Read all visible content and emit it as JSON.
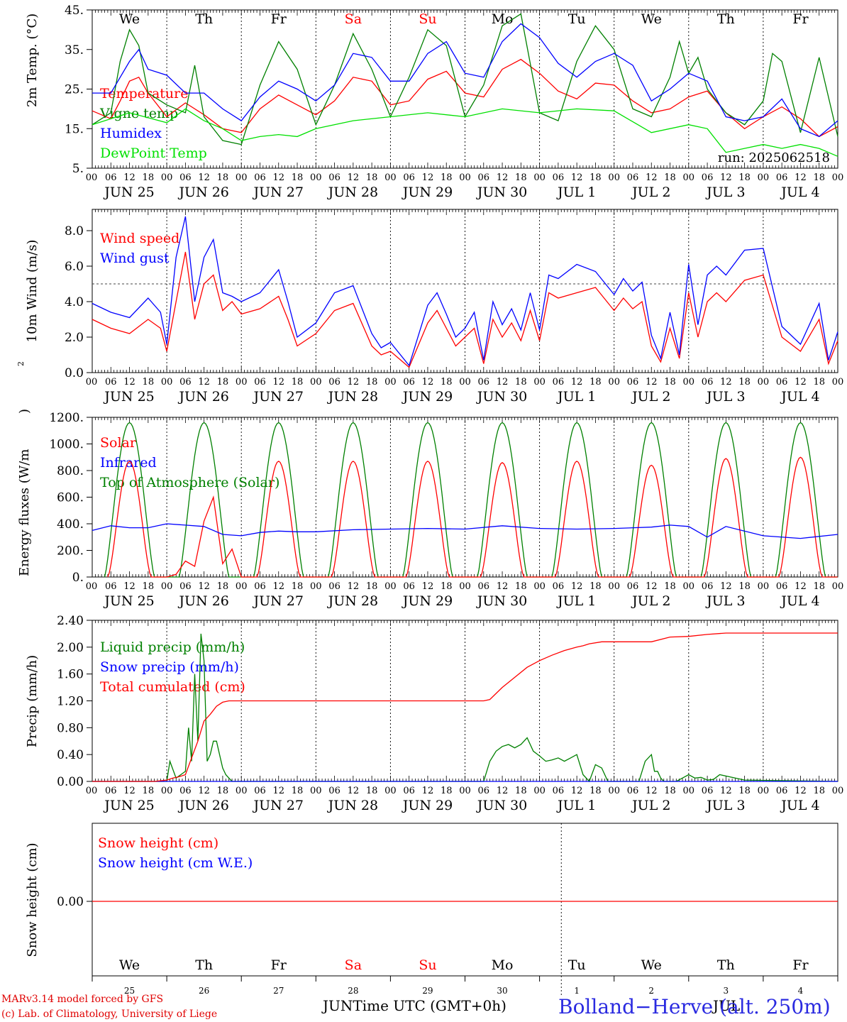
{
  "run_label": "run: 2025062518",
  "days": {
    "weekday": [
      "We",
      "Th",
      "Fr",
      "Sa",
      "Su",
      "Mo",
      "Tu",
      "We",
      "Th",
      "Fr"
    ],
    "weekend_flags": [
      false,
      false,
      false,
      true,
      true,
      false,
      false,
      false,
      false,
      false
    ],
    "dates": [
      "JUN 25",
      "JUN 26",
      "JUN 27",
      "JUN 28",
      "JUN 29",
      "JUN 30",
      "JUL  1",
      "JUL  2",
      "JUL  3",
      "JUL  4"
    ],
    "day_numbers": [
      "25",
      "26",
      "27",
      "28",
      "29",
      "30",
      "1",
      "2",
      "3",
      "4"
    ],
    "hour_ticks": [
      "00",
      "06",
      "12",
      "18"
    ],
    "final_hour": "00"
  },
  "colors": {
    "temperature": "#ff0000",
    "vigne": "#008000",
    "humidex": "#0000ff",
    "dewpoint": "#00e000",
    "weekend": "#ff0000",
    "station": "#2a2ae0"
  },
  "footer": {
    "model": "MARv3.14 model forced by GFS",
    "lab": "(c) Lab. of Climatology, University of Liege",
    "axis_title": "JUNTime UTC (GMT+0h)",
    "month_right": "JUL",
    "station": "Bolland−Herve (alt. 250m)"
  },
  "chart_data": [
    {
      "type": "line",
      "ylabel": "2m Temp. (°C)",
      "ylim": [
        5,
        45
      ],
      "yticks": [
        "45.",
        "35.",
        "25.",
        "15.",
        "5."
      ],
      "x_unit": "hours since 2025-06-25 00 UTC",
      "x_range": [
        0,
        240
      ],
      "series": [
        {
          "name": "Temperature",
          "color": "#ff0000",
          "x": [
            0,
            6,
            9,
            12,
            15,
            18,
            24,
            30,
            36,
            42,
            48,
            54,
            60,
            66,
            72,
            78,
            84,
            90,
            96,
            102,
            108,
            114,
            120,
            126,
            132,
            138,
            144,
            150,
            156,
            162,
            168,
            174,
            180,
            186,
            192,
            198,
            204,
            210,
            216,
            222,
            228,
            234,
            240
          ],
          "y": [
            19.5,
            17.5,
            22,
            27,
            28,
            24,
            18,
            21.5,
            18.5,
            15,
            14,
            20,
            23.5,
            21,
            18.5,
            22,
            28,
            27,
            21,
            22,
            27.5,
            29.5,
            24,
            23,
            30,
            32.5,
            29,
            24.5,
            22.5,
            26.5,
            26,
            22,
            19,
            20,
            23,
            24.5,
            19,
            15,
            18,
            20.5,
            17.5,
            13,
            15.5
          ]
        },
        {
          "name": "Vigne temp",
          "color": "#008000",
          "x": [
            0,
            6,
            9,
            12,
            15,
            18,
            24,
            30,
            33,
            36,
            42,
            48,
            54,
            60,
            66,
            72,
            78,
            84,
            90,
            96,
            102,
            108,
            114,
            120,
            126,
            132,
            138,
            144,
            150,
            156,
            162,
            168,
            174,
            180,
            186,
            189,
            192,
            195,
            198,
            204,
            210,
            216,
            219,
            222,
            228,
            234,
            240
          ],
          "y": [
            16,
            19,
            32,
            40,
            36,
            24,
            21,
            19,
            31,
            18,
            12,
            11,
            26,
            37,
            30,
            16,
            26,
            39,
            30,
            18,
            28,
            40,
            36,
            18,
            26,
            41,
            44,
            19,
            17,
            32,
            41,
            35,
            20,
            18,
            28,
            37,
            29,
            33,
            25,
            19,
            16,
            22,
            34,
            32,
            14,
            33,
            13
          ]
        },
        {
          "name": "Humidex",
          "color": "#0000ff",
          "x": [
            0,
            6,
            12,
            15,
            18,
            24,
            30,
            36,
            42,
            48,
            54,
            60,
            66,
            72,
            78,
            84,
            90,
            96,
            102,
            108,
            114,
            120,
            126,
            132,
            138,
            144,
            150,
            156,
            162,
            168,
            174,
            180,
            186,
            192,
            198,
            204,
            210,
            216,
            222,
            228,
            234,
            240
          ],
          "y": [
            24,
            24,
            32,
            35,
            30,
            28.5,
            24,
            24,
            20,
            17,
            23,
            27,
            25,
            22,
            26,
            34,
            33,
            27,
            27,
            34,
            37,
            29,
            28,
            37,
            41.5,
            38,
            31.5,
            28,
            32,
            34,
            31,
            22,
            25,
            29,
            27,
            18,
            17,
            18,
            22.5,
            15,
            13,
            17
          ]
        },
        {
          "name": "DewPoint Temp",
          "color": "#00e000",
          "x": [
            0,
            12,
            24,
            30,
            36,
            42,
            48,
            54,
            60,
            66,
            72,
            84,
            96,
            108,
            120,
            132,
            144,
            156,
            168,
            180,
            192,
            198,
            204,
            210,
            216,
            222,
            228,
            234,
            240
          ],
          "y": [
            16,
            19,
            16.5,
            20,
            17,
            15,
            12,
            13,
            13.5,
            13,
            15,
            17,
            18,
            19,
            18,
            20,
            19,
            20,
            19.5,
            14,
            16,
            15,
            9,
            10,
            11,
            10,
            11,
            10,
            8
          ]
        }
      ],
      "legend": "left",
      "grid": false
    },
    {
      "type": "line",
      "ylabel": "10m Wind (m/s)",
      "ylim": [
        0,
        9
      ],
      "yticks": [
        "8.0",
        "6.0",
        "4.0",
        "2.0",
        "0.0"
      ],
      "reference_line": 5,
      "x_unit": "hours since 2025-06-25 00 UTC",
      "x_range": [
        0,
        240
      ],
      "series": [
        {
          "name": "Wind speed",
          "color": "#ff0000",
          "x": [
            0,
            6,
            12,
            18,
            22,
            24,
            27,
            30,
            33,
            36,
            39,
            42,
            45,
            48,
            54,
            60,
            63,
            66,
            72,
            78,
            84,
            90,
            93,
            96,
            102,
            108,
            111,
            114,
            117,
            120,
            123,
            126,
            129,
            132,
            135,
            138,
            141,
            144,
            147,
            150,
            156,
            162,
            168,
            171,
            174,
            177,
            180,
            183,
            186,
            189,
            192,
            195,
            198,
            201,
            204,
            210,
            216,
            222,
            228,
            234,
            237,
            240
          ],
          "y": [
            3,
            2.5,
            2.2,
            3,
            2.5,
            1.2,
            4,
            6.8,
            3,
            5,
            5.5,
            3.5,
            4,
            3.3,
            3.6,
            4.3,
            3,
            1.5,
            2.2,
            3.5,
            3.9,
            1.5,
            1,
            1.2,
            0.3,
            2.8,
            3.5,
            2.5,
            1.5,
            2,
            2.5,
            0.5,
            3,
            2,
            2.8,
            1.8,
            3.5,
            1.8,
            4.5,
            4.2,
            4.5,
            4.8,
            3.5,
            4.2,
            3.6,
            4,
            1.5,
            0.6,
            2.5,
            0.8,
            4.5,
            2,
            4,
            4.5,
            4,
            5.2,
            5.5,
            2,
            1.2,
            3,
            0.5,
            1.8
          ]
        },
        {
          "name": "Wind gust",
          "color": "#0000ff",
          "x": [
            0,
            6,
            12,
            18,
            22,
            24,
            27,
            30,
            33,
            36,
            39,
            42,
            45,
            48,
            54,
            60,
            63,
            66,
            72,
            78,
            84,
            90,
            93,
            96,
            102,
            108,
            111,
            114,
            117,
            120,
            123,
            126,
            129,
            132,
            135,
            138,
            141,
            144,
            147,
            150,
            156,
            162,
            168,
            171,
            174,
            177,
            180,
            183,
            186,
            189,
            192,
            195,
            198,
            201,
            204,
            210,
            216,
            222,
            228,
            234,
            237,
            240
          ],
          "y": [
            3.9,
            3.4,
            3.1,
            4.2,
            3.4,
            1.6,
            6.5,
            8.8,
            4,
            6.5,
            7.5,
            4.5,
            4.3,
            4,
            4.5,
            5.8,
            4,
            2,
            2.8,
            4.5,
            4.9,
            2.2,
            1.4,
            1.7,
            0.4,
            3.8,
            4.5,
            3.3,
            2,
            2.5,
            3.4,
            0.7,
            4,
            2.7,
            3.6,
            2.4,
            4.5,
            2.4,
            5.5,
            5.3,
            6.1,
            5.7,
            4.4,
            5.3,
            4.6,
            5.1,
            2.1,
            0.8,
            3.4,
            1,
            6.1,
            2.7,
            5.5,
            6,
            5.5,
            6.9,
            7,
            2.6,
            1.6,
            3.9,
            0.7,
            2.3
          ]
        }
      ],
      "legend": "left",
      "grid": false
    },
    {
      "type": "line",
      "ylabel": "Energy fluxes (W/m²)",
      "ylim": [
        0,
        1200
      ],
      "yticks": [
        "1200.",
        "1000.",
        "800.",
        "600.",
        "400.",
        "200.",
        "0."
      ],
      "x_unit": "hours since 2025-06-25 00 UTC",
      "x_range": [
        0,
        240
      ],
      "series": [
        {
          "name": "Solar",
          "color": "#ff0000",
          "daily_peaks": [
            870,
            600,
            870,
            870,
            870,
            860,
            870,
            840,
            890,
            900
          ],
          "x": [
            24,
            27,
            30,
            33,
            36,
            39,
            42,
            45,
            48
          ],
          "y": [
            0,
            20,
            120,
            80,
            420,
            600,
            100,
            210,
            0
          ]
        },
        {
          "name": "Infrared",
          "color": "#0000ff",
          "x": [
            0,
            6,
            12,
            18,
            24,
            30,
            36,
            42,
            48,
            54,
            60,
            66,
            72,
            84,
            96,
            108,
            120,
            132,
            144,
            156,
            168,
            180,
            186,
            192,
            198,
            204,
            216,
            228,
            240
          ],
          "y": [
            350,
            385,
            370,
            370,
            400,
            390,
            380,
            320,
            310,
            335,
            345,
            340,
            340,
            355,
            360,
            365,
            360,
            385,
            365,
            360,
            365,
            375,
            390,
            380,
            300,
            380,
            310,
            290,
            320
          ]
        },
        {
          "name": "Top of Atmosphere (Solar)",
          "color": "#008000",
          "daily_peak": 1160,
          "sunrise_h": 4,
          "sunset_h": 20
        }
      ],
      "legend": "left",
      "grid": false
    },
    {
      "type": "line",
      "ylabel": "Precip (mm/h)",
      "ylim": [
        0,
        2.4
      ],
      "yticks": [
        "2.40",
        "2.00",
        "1.60",
        "1.20",
        "0.80",
        "0.40",
        "0.00"
      ],
      "x_unit": "hours since 2025-06-25 00 UTC",
      "x_range": [
        0,
        240
      ],
      "series": [
        {
          "name": "Liquid precip (mm/h)",
          "color": "#008000",
          "x": [
            0,
            24,
            25,
            27,
            30,
            31,
            32,
            33,
            34,
            35,
            36,
            37,
            38,
            39,
            40,
            41,
            42,
            43,
            44,
            45,
            46,
            48,
            126,
            128,
            130,
            132,
            134,
            136,
            138,
            140,
            142,
            144,
            146,
            148,
            150,
            152,
            154,
            156,
            158,
            160,
            162,
            164,
            166,
            168,
            170,
            172,
            174,
            176,
            178,
            180,
            181,
            182,
            183,
            184,
            186,
            188,
            190,
            192,
            194,
            196,
            198,
            200,
            202,
            210,
            240
          ],
          "y": [
            0,
            0,
            0.3,
            0.05,
            0.15,
            0.8,
            0.3,
            1.6,
            0.6,
            2.2,
            1.8,
            0.3,
            0.4,
            0.6,
            0.6,
            0.4,
            0.2,
            0.1,
            0.05,
            0,
            0,
            0,
            0,
            0.3,
            0.45,
            0.52,
            0.55,
            0.5,
            0.55,
            0.65,
            0.45,
            0.38,
            0.3,
            0.32,
            0.35,
            0.3,
            0.35,
            0.4,
            0.1,
            0,
            0.25,
            0.2,
            0,
            0,
            0,
            0,
            0,
            0,
            0.3,
            0.4,
            0.15,
            0.15,
            0.05,
            0,
            0,
            0,
            0.05,
            0.1,
            0.05,
            0.06,
            0.02,
            0.03,
            0.1,
            0.02,
            0
          ]
        },
        {
          "name": "Snow precip (mm/h)",
          "color": "#0000ff",
          "x": [
            0,
            240
          ],
          "y": [
            0,
            0
          ]
        },
        {
          "name": "Total cumulated (cm)",
          "color": "#ff0000",
          "x": [
            0,
            20,
            24,
            26,
            28,
            30,
            32,
            34,
            36,
            38,
            40,
            42,
            44,
            48,
            60,
            84,
            108,
            126,
            128,
            132,
            136,
            140,
            144,
            148,
            152,
            156,
            158,
            160,
            164,
            168,
            174,
            180,
            186,
            192,
            198,
            204,
            216,
            228,
            240
          ],
          "y": [
            0,
            0,
            0.02,
            0.05,
            0.07,
            0.1,
            0.35,
            0.6,
            0.9,
            1,
            1.12,
            1.18,
            1.2,
            1.2,
            1.2,
            1.2,
            1.2,
            1.2,
            1.22,
            1.4,
            1.55,
            1.7,
            1.8,
            1.88,
            1.95,
            2,
            2.02,
            2.05,
            2.08,
            2.08,
            2.08,
            2.08,
            2.15,
            2.16,
            2.19,
            2.21,
            2.21,
            2.21,
            2.21
          ]
        }
      ],
      "legend": "left",
      "grid": false
    },
    {
      "type": "line",
      "ylabel": "Snow height (cm)",
      "yticks": [
        "0.00"
      ],
      "x_unit": "hours since 2025-06-25 00 UTC",
      "x_range": [
        0,
        240
      ],
      "series": [
        {
          "name": "Snow height (cm)",
          "color": "#ff0000",
          "x": [
            0,
            240
          ],
          "y": [
            0,
            0
          ]
        },
        {
          "name": "Snow height (cm W.E.)",
          "color": "#0000ff",
          "x": [
            0,
            240
          ],
          "y": [
            0,
            0
          ]
        }
      ],
      "legend": "left",
      "grid": false
    }
  ]
}
